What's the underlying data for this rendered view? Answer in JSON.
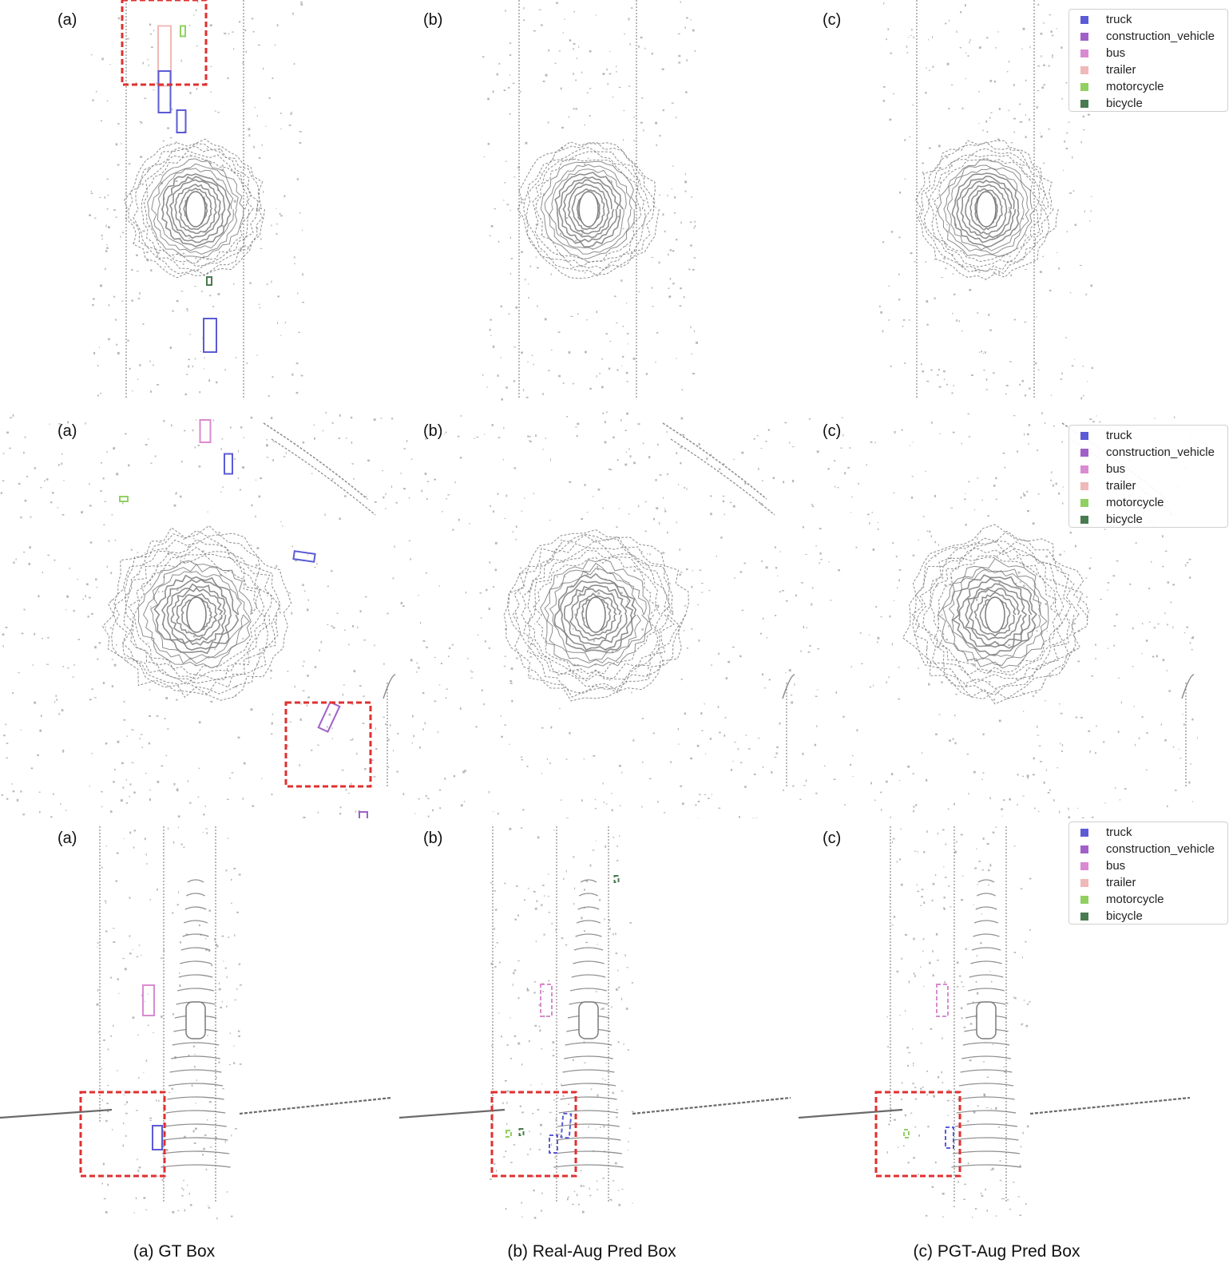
{
  "colors": {
    "truck": "#5b5bd6",
    "construction_vehicle": "#a060c8",
    "bus": "#d98ad0",
    "trailer": "#f0b8b8",
    "motorcycle": "#90d060",
    "bicycle": "#4a7a50",
    "highlight": "#e03030",
    "pointcloud": "#7a7a7a"
  },
  "legend": {
    "items": [
      {
        "label": "truck",
        "color": "#5b5bd6"
      },
      {
        "label": "construction_vehicle",
        "color": "#a060c8"
      },
      {
        "label": "bus",
        "color": "#d98ad0"
      },
      {
        "label": "trailer",
        "color": "#f0b8b8"
      },
      {
        "label": "motorcycle",
        "color": "#90d060"
      },
      {
        "label": "bicycle",
        "color": "#4a7a50"
      }
    ]
  },
  "rows": [
    {
      "scene": "road-vertical",
      "labels": [
        "(a)",
        "(b)",
        "(c)"
      ]
    },
    {
      "scene": "intersection",
      "labels": [
        "(a)",
        "(b)",
        "(c)"
      ]
    },
    {
      "scene": "road-turn",
      "labels": [
        "(a)",
        "(b)",
        "(c)"
      ]
    }
  ],
  "captions": [
    "(a) GT Box",
    "(b) Real-Aug Pred Box",
    "(c) PGT-Aug Pred Box"
  ]
}
